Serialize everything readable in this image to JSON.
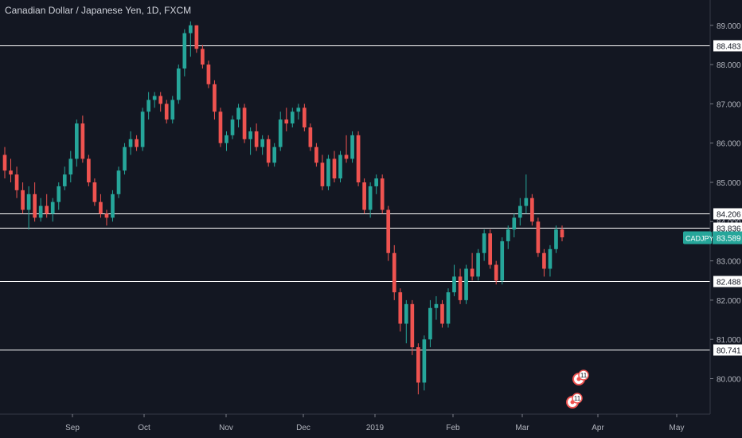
{
  "header": {
    "title": "Canadian Dollar / Japanese Yen, 1D, FXCM"
  },
  "colors": {
    "background": "#131722",
    "up": "#26a69a",
    "down": "#ef5350",
    "axis_text": "#b2b5be",
    "level_line": "#ffffff",
    "last_price_tag": "#26a69a"
  },
  "chart_data": {
    "type": "candlestick",
    "title": "Canadian Dollar / Japanese Yen, 1D, FXCM",
    "symbol": "CADJPY",
    "last_price": 83.589,
    "ylim": [
      79.3,
      89.3
    ],
    "y_ticks": [
      "80.000",
      "81.000",
      "82.000",
      "83.000",
      "84.000",
      "85.000",
      "86.000",
      "87.000",
      "88.000",
      "89.000"
    ],
    "y_tick_values": [
      80,
      81,
      82,
      83,
      84,
      85,
      86,
      87,
      88,
      89
    ],
    "x_labels": [
      "Sep",
      "Oct",
      "Nov",
      "Dec",
      "2019",
      "Feb",
      "Mar",
      "Apr",
      "May"
    ],
    "horizontal_levels": [
      {
        "value": 88.483,
        "label": "88.483"
      },
      {
        "value": 84.206,
        "label": "84.206"
      },
      {
        "value": 83.836,
        "label": "83.836"
      },
      {
        "value": 82.488,
        "label": "82.488"
      },
      {
        "value": 80.741,
        "label": "80.741"
      }
    ],
    "event_markers": [
      {
        "label": "11"
      },
      {
        "label": "11"
      }
    ],
    "candles": [
      [
        85.7,
        85.9,
        85.1,
        85.3
      ],
      [
        85.3,
        85.6,
        85.0,
        85.2
      ],
      [
        85.2,
        85.4,
        84.6,
        84.8
      ],
      [
        84.8,
        85.0,
        84.2,
        84.3
      ],
      [
        84.3,
        84.9,
        83.8,
        84.7
      ],
      [
        84.7,
        85.0,
        84.0,
        84.1
      ],
      [
        84.1,
        84.6,
        84.0,
        84.4
      ],
      [
        84.4,
        84.7,
        84.1,
        84.2
      ],
      [
        84.2,
        84.6,
        84.0,
        84.5
      ],
      [
        84.5,
        85.0,
        84.3,
        84.9
      ],
      [
        84.9,
        85.4,
        84.8,
        85.2
      ],
      [
        85.2,
        85.8,
        85.0,
        85.6
      ],
      [
        85.6,
        86.6,
        85.4,
        86.5
      ],
      [
        86.5,
        86.7,
        85.5,
        85.6
      ],
      [
        85.6,
        85.7,
        84.9,
        85.0
      ],
      [
        85.0,
        85.1,
        84.4,
        84.5
      ],
      [
        84.5,
        84.7,
        84.1,
        84.2
      ],
      [
        84.2,
        84.3,
        83.9,
        84.1
      ],
      [
        84.1,
        84.8,
        84.0,
        84.7
      ],
      [
        84.7,
        85.4,
        84.6,
        85.3
      ],
      [
        85.3,
        86.0,
        85.2,
        85.9
      ],
      [
        85.9,
        86.3,
        85.7,
        86.1
      ],
      [
        86.1,
        86.2,
        85.8,
        85.9
      ],
      [
        85.9,
        86.9,
        85.8,
        86.8
      ],
      [
        86.8,
        87.3,
        86.6,
        87.1
      ],
      [
        87.1,
        87.3,
        86.9,
        87.2
      ],
      [
        87.2,
        87.3,
        86.8,
        87.0
      ],
      [
        87.0,
        87.1,
        86.5,
        86.6
      ],
      [
        86.6,
        87.2,
        86.5,
        87.1
      ],
      [
        87.1,
        88.0,
        87.0,
        87.9
      ],
      [
        87.9,
        88.9,
        87.7,
        88.8
      ],
      [
        88.8,
        89.1,
        88.2,
        89.0
      ],
      [
        89.0,
        89.0,
        88.3,
        88.4
      ],
      [
        88.4,
        88.5,
        87.9,
        88.0
      ],
      [
        88.0,
        88.1,
        87.4,
        87.5
      ],
      [
        87.5,
        87.6,
        86.6,
        86.8
      ],
      [
        86.8,
        86.9,
        85.9,
        86.0
      ],
      [
        86.0,
        86.3,
        85.8,
        86.2
      ],
      [
        86.2,
        86.7,
        86.1,
        86.6
      ],
      [
        86.6,
        87.0,
        86.4,
        86.9
      ],
      [
        86.9,
        87.0,
        86.0,
        86.1
      ],
      [
        86.1,
        86.4,
        85.7,
        86.3
      ],
      [
        86.3,
        86.5,
        85.8,
        85.9
      ],
      [
        85.9,
        86.2,
        85.7,
        86.1
      ],
      [
        86.1,
        86.2,
        85.4,
        85.5
      ],
      [
        85.5,
        86.0,
        85.4,
        85.9
      ],
      [
        85.9,
        86.8,
        85.8,
        86.6
      ],
      [
        86.6,
        86.9,
        86.3,
        86.5
      ],
      [
        86.5,
        86.9,
        86.4,
        86.8
      ],
      [
        86.8,
        87.0,
        86.6,
        86.9
      ],
      [
        86.9,
        87.0,
        86.3,
        86.4
      ],
      [
        86.4,
        86.5,
        85.8,
        85.9
      ],
      [
        85.9,
        86.0,
        85.4,
        85.5
      ],
      [
        85.5,
        85.7,
        84.8,
        84.9
      ],
      [
        84.9,
        85.7,
        84.8,
        85.6
      ],
      [
        85.6,
        85.8,
        85.0,
        85.1
      ],
      [
        85.1,
        85.8,
        85.0,
        85.7
      ],
      [
        85.7,
        86.2,
        85.5,
        85.6
      ],
      [
        85.6,
        86.3,
        85.5,
        86.2
      ],
      [
        86.2,
        86.3,
        84.9,
        85.0
      ],
      [
        85.0,
        85.1,
        84.2,
        84.3
      ],
      [
        84.3,
        85.0,
        84.1,
        84.9
      ],
      [
        84.9,
        85.2,
        84.7,
        85.1
      ],
      [
        85.1,
        85.2,
        84.2,
        84.3
      ],
      [
        84.3,
        84.4,
        83.0,
        83.2
      ],
      [
        83.2,
        83.4,
        82.0,
        82.2
      ],
      [
        82.2,
        82.3,
        81.2,
        81.4
      ],
      [
        81.4,
        82.0,
        80.9,
        81.9
      ],
      [
        81.9,
        82.0,
        80.6,
        80.8
      ],
      [
        80.8,
        80.9,
        79.6,
        79.9
      ],
      [
        79.9,
        81.1,
        79.7,
        81.0
      ],
      [
        81.0,
        82.0,
        80.8,
        81.8
      ],
      [
        81.8,
        82.1,
        81.5,
        81.9
      ],
      [
        81.9,
        82.0,
        81.3,
        81.4
      ],
      [
        81.4,
        82.3,
        81.3,
        82.2
      ],
      [
        82.2,
        82.9,
        82.1,
        82.6
      ],
      [
        82.6,
        82.8,
        81.9,
        82.0
      ],
      [
        82.0,
        82.9,
        81.9,
        82.8
      ],
      [
        82.8,
        83.2,
        82.5,
        82.6
      ],
      [
        82.6,
        83.3,
        82.5,
        83.2
      ],
      [
        83.2,
        83.8,
        83.0,
        83.7
      ],
      [
        83.7,
        83.8,
        82.8,
        82.9
      ],
      [
        82.9,
        83.0,
        82.4,
        82.5
      ],
      [
        82.5,
        83.6,
        82.4,
        83.5
      ],
      [
        83.5,
        83.9,
        83.3,
        83.8
      ],
      [
        83.8,
        84.2,
        83.6,
        84.1
      ],
      [
        84.1,
        84.6,
        83.9,
        84.4
      ],
      [
        84.4,
        85.2,
        84.2,
        84.6
      ],
      [
        84.6,
        84.7,
        83.9,
        84.0
      ],
      [
        84.0,
        84.1,
        83.1,
        83.2
      ],
      [
        83.2,
        83.3,
        82.6,
        82.8
      ],
      [
        82.8,
        83.4,
        82.6,
        83.3
      ],
      [
        83.3,
        83.9,
        83.2,
        83.8
      ],
      [
        83.8,
        83.9,
        83.5,
        83.6
      ]
    ]
  }
}
